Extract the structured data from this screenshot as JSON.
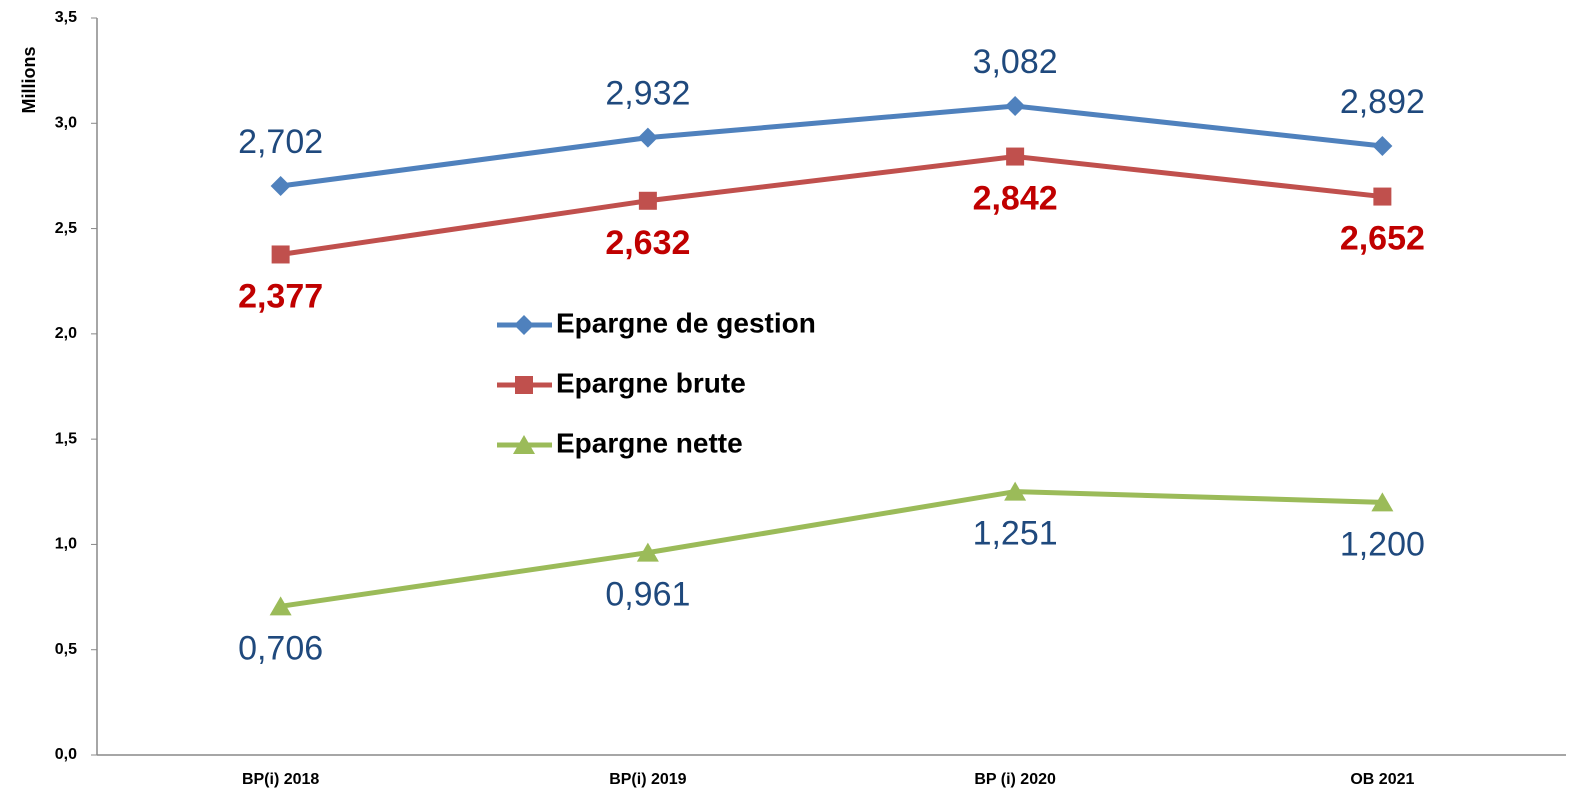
{
  "chart_data": {
    "type": "line",
    "y_label": "Millions",
    "categories": [
      "BP(i) 2018",
      "BP(i) 2019",
      "BP (i) 2020",
      "OB 2021"
    ],
    "series": [
      {
        "name": "Epargne de gestion",
        "color": "#4f81bd",
        "marker": "diamond",
        "label_color": "#1f497d",
        "label_bold": false,
        "label_position": "above",
        "values": [
          2.702,
          2.932,
          3.082,
          2.892
        ],
        "value_labels": [
          "2,702",
          "2,932",
          "3,082",
          "2,892"
        ]
      },
      {
        "name": "Epargne brute",
        "color": "#c0504d",
        "marker": "square",
        "label_color": "#c00000",
        "label_bold": true,
        "label_position": "below",
        "values": [
          2.377,
          2.632,
          2.842,
          2.652
        ],
        "value_labels": [
          "2,377",
          "2,632",
          "2,842",
          "2,652"
        ]
      },
      {
        "name": "Epargne nette",
        "color": "#9bbb59",
        "marker": "triangle",
        "label_color": "#1f497d",
        "label_bold": false,
        "label_position": "below",
        "values": [
          0.706,
          0.961,
          1.251,
          1.2
        ],
        "value_labels": [
          "0,706",
          "0,961",
          "1,251",
          "1,200"
        ]
      }
    ],
    "ylim": [
      0,
      3.5
    ],
    "yticks": [
      {
        "value": 0,
        "label": "0,0"
      },
      {
        "value": 0.5,
        "label": "0,5"
      },
      {
        "value": 1,
        "label": "1,0"
      },
      {
        "value": 1.5,
        "label": "1,5"
      },
      {
        "value": 2,
        "label": "2,0"
      },
      {
        "value": 2.5,
        "label": "2,5"
      },
      {
        "value": 3,
        "label": "3,0"
      },
      {
        "value": 3.5,
        "label": "3,5"
      }
    ],
    "grid": false,
    "legend": "center"
  }
}
